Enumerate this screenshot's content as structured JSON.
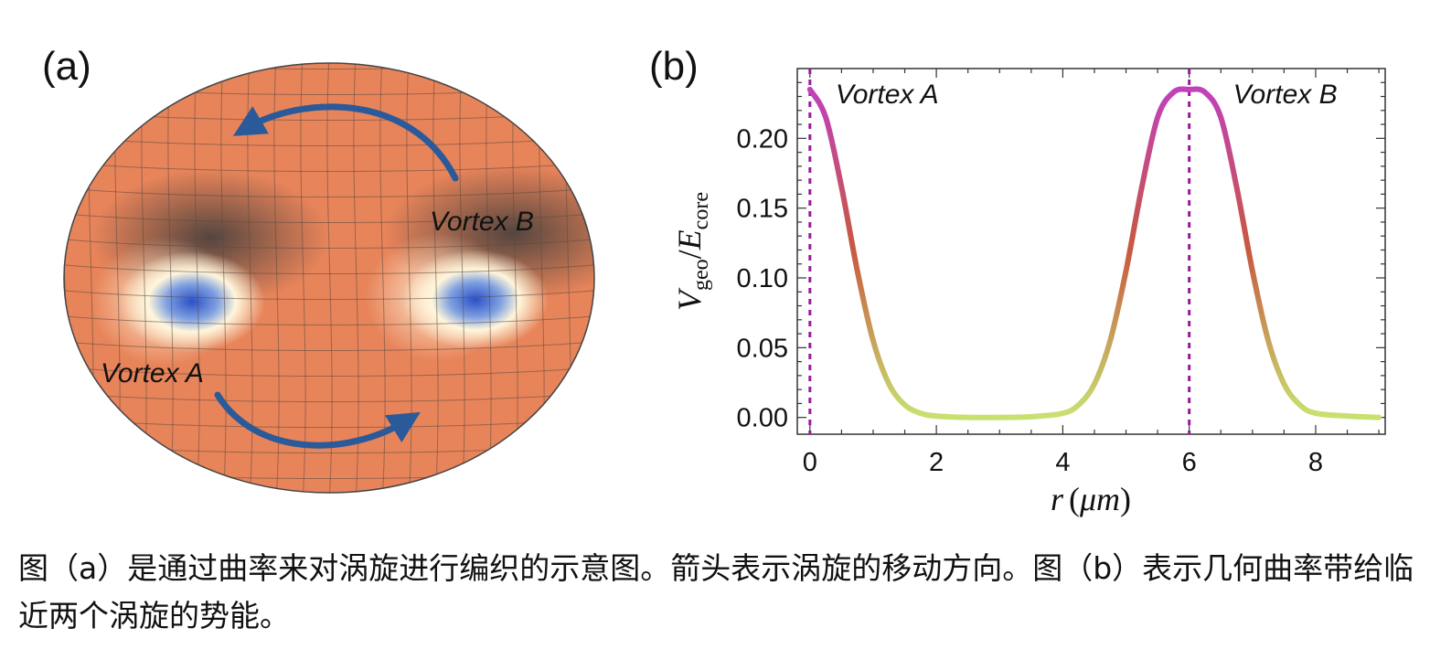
{
  "panel_a": {
    "label": "(a)",
    "vortex_a_label": "Vortex A",
    "vortex_b_label": "Vortex B",
    "colors": {
      "surface": "#e8845a",
      "vortex_core": "#3a5fc8",
      "arrow": "#2a5a99"
    }
  },
  "panel_b": {
    "label": "(b)"
  },
  "chart_data": {
    "type": "line",
    "xlabel": "r (μm)",
    "ylabel": "V_geo / E_core",
    "xlim": [
      -0.2,
      9.1
    ],
    "ylim": [
      -0.012,
      0.25
    ],
    "xticks": [
      0,
      2,
      4,
      6,
      8
    ],
    "xtick_labels": [
      "0",
      "2",
      "4",
      "6",
      "8"
    ],
    "yticks": [
      0.0,
      0.05,
      0.1,
      0.15,
      0.2
    ],
    "ytick_labels": [
      "0.00",
      "0.05",
      "0.10",
      "0.15",
      "0.20"
    ],
    "grid": false,
    "series": [
      {
        "x": [
          0,
          0.25,
          0.5,
          0.75,
          1.0,
          1.25,
          1.5,
          1.75,
          2.0,
          2.5,
          3.0,
          3.5,
          4.0,
          4.25,
          4.5,
          4.75,
          5.0,
          5.25,
          5.5,
          5.75,
          6.0,
          6.25,
          6.5,
          6.75,
          7.0,
          7.25,
          7.5,
          7.75,
          8.0,
          8.5,
          9.0
        ],
        "y": [
          0.235,
          0.215,
          0.165,
          0.105,
          0.055,
          0.024,
          0.009,
          0.003,
          0.001,
          0.0,
          0.0,
          0.0005,
          0.003,
          0.009,
          0.024,
          0.055,
          0.105,
          0.165,
          0.215,
          0.233,
          0.235,
          0.233,
          0.215,
          0.165,
          0.105,
          0.055,
          0.024,
          0.009,
          0.003,
          0.001,
          0.0
        ],
        "colors": {
          "high": "#c040c0",
          "mid": "#c85840",
          "low": "#c8e070"
        }
      }
    ],
    "vlines": [
      {
        "x": 0,
        "label": "Vortex A",
        "color": "#9a1a9a"
      },
      {
        "x": 6,
        "label": "Vortex B",
        "color": "#9a1a9a"
      }
    ]
  },
  "caption": "图（a）是通过曲率来对涡旋进行编织的示意图。箭头表示涡旋的移动方向。图（b）表示几何曲率带给临近两个涡旋的势能。"
}
